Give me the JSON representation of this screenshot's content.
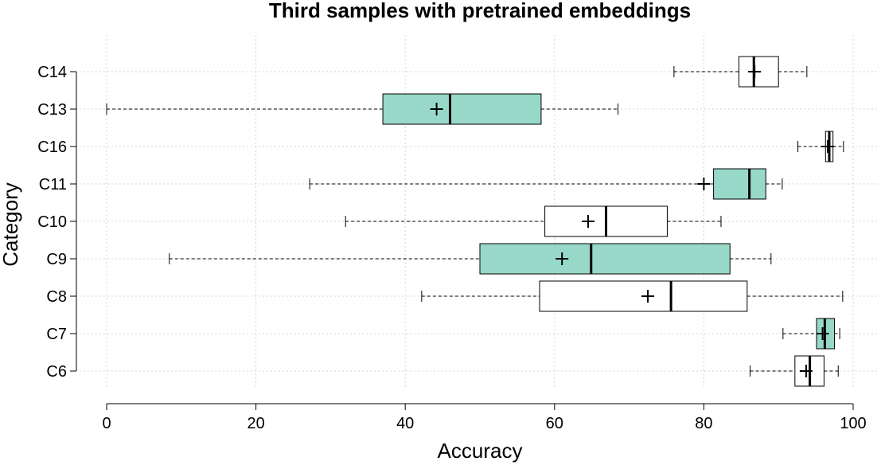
{
  "chart_data": {
    "type": "boxplot",
    "orientation": "horizontal",
    "title": "Third samples with pretrained embeddings",
    "xlabel": "Accuracy",
    "ylabel": "Category",
    "xlim": [
      0,
      100
    ],
    "xticks": [
      "0",
      "20",
      "40",
      "60",
      "80",
      "100"
    ],
    "grid": true,
    "colors": {
      "filled": "#98d8c8",
      "plain": "#ffffff",
      "stroke": "#000000",
      "grid": "#d3d3d3"
    },
    "categories": [
      "C14",
      "C13",
      "C16",
      "C11",
      "C10",
      "C9",
      "C8",
      "C7",
      "C6"
    ],
    "boxes": [
      {
        "label": "C14",
        "whisker_low": 76.0,
        "q1": 84.7,
        "median": 86.7,
        "q3": 90.0,
        "whisker_high": 93.8,
        "mean": 86.8,
        "filled": false
      },
      {
        "label": "C13",
        "whisker_low": 0.0,
        "q1": 37.0,
        "median": 46.0,
        "q3": 58.2,
        "whisker_high": 68.5,
        "mean": 44.2,
        "filled": true
      },
      {
        "label": "C16",
        "whisker_low": 92.6,
        "q1": 96.3,
        "median": 96.8,
        "q3": 97.3,
        "whisker_high": 98.7,
        "mean": 96.6,
        "filled": false
      },
      {
        "label": "C11",
        "whisker_low": 27.2,
        "q1": 81.3,
        "median": 86.1,
        "q3": 88.3,
        "whisker_high": 90.5,
        "mean": 80.0,
        "filled": true
      },
      {
        "label": "C10",
        "whisker_low": 32.0,
        "q1": 58.7,
        "median": 66.9,
        "q3": 75.1,
        "whisker_high": 82.3,
        "mean": 64.5,
        "filled": false
      },
      {
        "label": "C9",
        "whisker_low": 8.4,
        "q1": 50.0,
        "median": 64.9,
        "q3": 83.5,
        "whisker_high": 89.0,
        "mean": 61.0,
        "filled": true
      },
      {
        "label": "C8",
        "whisker_low": 42.2,
        "q1": 58.0,
        "median": 75.6,
        "q3": 85.8,
        "whisker_high": 98.6,
        "mean": 72.5,
        "filled": false
      },
      {
        "label": "C7",
        "whisker_low": 90.6,
        "q1": 95.1,
        "median": 96.2,
        "q3": 97.5,
        "whisker_high": 98.2,
        "mean": 95.9,
        "filled": true
      },
      {
        "label": "C6",
        "whisker_low": 86.2,
        "q1": 92.2,
        "median": 94.2,
        "q3": 96.1,
        "whisker_high": 98.0,
        "mean": 93.7,
        "filled": false
      }
    ]
  }
}
